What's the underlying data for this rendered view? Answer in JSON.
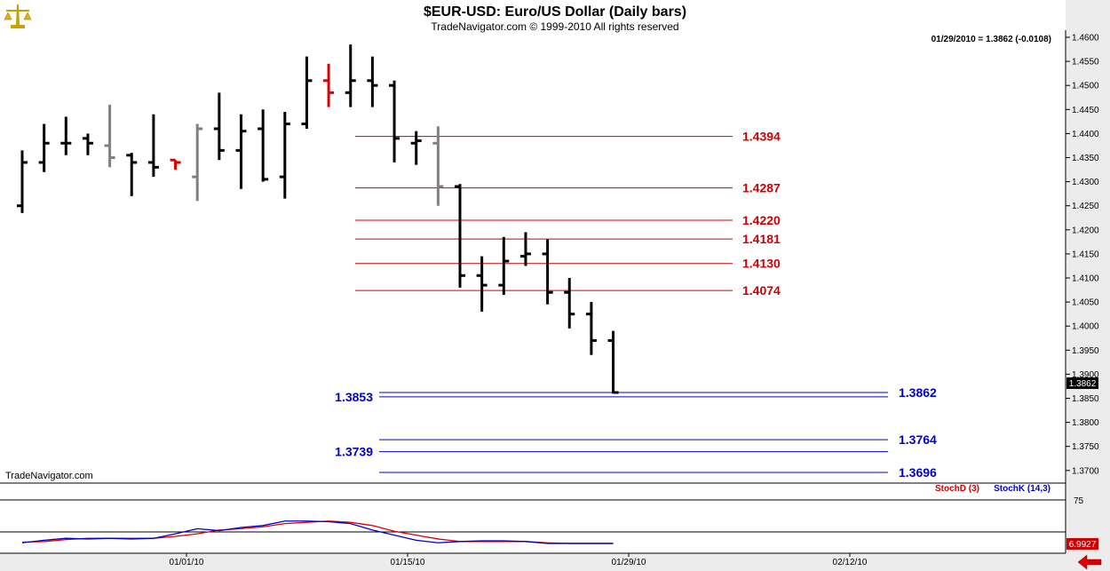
{
  "header": {
    "title": "$EUR-USD:  Euro/US Dollar  (Daily bars)",
    "subtitle": "TradeNavigator.com © 1999-2010 All rights reserved"
  },
  "info": {
    "last_quote": "01/29/2010 = 1.3862 (-0.0108)"
  },
  "watermark": "TradeNavigator.com",
  "colors": {
    "up_bar": "#000000",
    "down_bar": "#000000",
    "gray_bar": "#808080",
    "red_bar": "#dd0000",
    "fib_red": "#cc0000",
    "fib_blue": "#0000cc",
    "stoch_d": "#dd0000",
    "stoch_k": "#0000cc",
    "price_tag_bg": "#000000",
    "stoch_tag_bg": "#cc0000"
  },
  "chart_data": {
    "type": "ohlc",
    "y_ticks": [
      "1.4600",
      "1.4550",
      "1.4500",
      "1.4450",
      "1.4400",
      "1.4350",
      "1.4300",
      "1.4250",
      "1.4200",
      "1.4150",
      "1.4100",
      "1.4050",
      "1.4000",
      "1.3950",
      "1.3900",
      "1.3850",
      "1.3800",
      "1.3750",
      "1.3700"
    ],
    "ylim": [
      1.367,
      1.461
    ],
    "x_ticks": [
      "01/01/10",
      "01/15/10",
      "01/29/10",
      "02/12/10"
    ],
    "bars": [
      {
        "o": 1.425,
        "h": 1.4365,
        "l": 1.4235,
        "c": 1.434,
        "color": "black"
      },
      {
        "o": 1.434,
        "h": 1.442,
        "l": 1.432,
        "c": 1.438,
        "color": "black"
      },
      {
        "o": 1.438,
        "h": 1.4435,
        "l": 1.4355,
        "c": 1.438,
        "color": "black"
      },
      {
        "o": 1.439,
        "h": 1.44,
        "l": 1.4355,
        "c": 1.438,
        "color": "black"
      },
      {
        "o": 1.4375,
        "h": 1.446,
        "l": 1.433,
        "c": 1.435,
        "color": "gray"
      },
      {
        "o": 1.4355,
        "h": 1.436,
        "l": 1.427,
        "c": 1.434,
        "color": "black"
      },
      {
        "o": 1.434,
        "h": 1.444,
        "l": 1.431,
        "c": 1.433,
        "color": "black"
      },
      {
        "o": 1.4345,
        "h": 1.4345,
        "l": 1.4325,
        "c": 1.434,
        "color": "red"
      },
      {
        "o": 1.431,
        "h": 1.442,
        "l": 1.426,
        "c": 1.441,
        "color": "gray"
      },
      {
        "o": 1.441,
        "h": 1.4485,
        "l": 1.4345,
        "c": 1.4365,
        "color": "black"
      },
      {
        "o": 1.4365,
        "h": 1.444,
        "l": 1.4285,
        "c": 1.4405,
        "color": "black"
      },
      {
        "o": 1.441,
        "h": 1.445,
        "l": 1.43,
        "c": 1.4305,
        "color": "black"
      },
      {
        "o": 1.431,
        "h": 1.4445,
        "l": 1.4265,
        "c": 1.442,
        "color": "black"
      },
      {
        "o": 1.442,
        "h": 1.456,
        "l": 1.441,
        "c": 1.451,
        "color": "black"
      },
      {
        "o": 1.451,
        "h": 1.4545,
        "l": 1.4455,
        "c": 1.4485,
        "color": "red"
      },
      {
        "o": 1.4485,
        "h": 1.4585,
        "l": 1.4455,
        "c": 1.451,
        "color": "black"
      },
      {
        "o": 1.451,
        "h": 1.456,
        "l": 1.4455,
        "c": 1.45,
        "color": "black"
      },
      {
        "o": 1.45,
        "h": 1.451,
        "l": 1.434,
        "c": 1.439,
        "color": "black"
      },
      {
        "o": 1.438,
        "h": 1.4405,
        "l": 1.4335,
        "c": 1.4385,
        "color": "black"
      },
      {
        "o": 1.438,
        "h": 1.4415,
        "l": 1.425,
        "c": 1.429,
        "color": "gray"
      },
      {
        "o": 1.429,
        "h": 1.4295,
        "l": 1.408,
        "c": 1.4105,
        "color": "black"
      },
      {
        "o": 1.4105,
        "h": 1.4145,
        "l": 1.403,
        "c": 1.4085,
        "color": "black"
      },
      {
        "o": 1.4085,
        "h": 1.4185,
        "l": 1.4065,
        "c": 1.4135,
        "color": "black"
      },
      {
        "o": 1.4145,
        "h": 1.4195,
        "l": 1.4125,
        "c": 1.415,
        "color": "black"
      },
      {
        "o": 1.415,
        "h": 1.418,
        "l": 1.4045,
        "c": 1.407,
        "color": "black"
      },
      {
        "o": 1.407,
        "h": 1.41,
        "l": 1.3995,
        "c": 1.4025,
        "color": "black"
      },
      {
        "o": 1.4025,
        "h": 1.405,
        "l": 1.394,
        "c": 1.397,
        "color": "black"
      },
      {
        "o": 1.397,
        "h": 1.399,
        "l": 1.386,
        "c": 1.3862,
        "color": "black"
      }
    ],
    "fib_levels_red": [
      1.4394,
      1.4287,
      1.422,
      1.4181,
      1.413,
      1.4074
    ],
    "fib_labels_red": [
      "1.4394",
      "1.4287",
      "1.4220",
      "1.4181",
      "1.4130",
      "1.4074"
    ],
    "fib_levels_blue": [
      {
        "value": 1.3862,
        "label": "1.3862",
        "side": "right"
      },
      {
        "value": 1.3853,
        "label": "1.3853",
        "side": "left"
      },
      {
        "value": 1.3764,
        "label": "1.3764",
        "side": "right"
      },
      {
        "value": 1.3739,
        "label": "1.3739",
        "side": "left"
      },
      {
        "value": 1.3696,
        "label": "1.3696",
        "side": "right"
      }
    ],
    "last_price": "1.3862",
    "stochastic": {
      "legend_d": "StochD (3)",
      "legend_k": "StochK (14,3)",
      "level_label": "75",
      "level_value": 75,
      "ylim": [
        0,
        100
      ],
      "last_value": "6.9927",
      "k": [
        8,
        12,
        15,
        14,
        15,
        14,
        15,
        22,
        30,
        27,
        32,
        35,
        42,
        42,
        41,
        38,
        28,
        20,
        12,
        8,
        10,
        11,
        11,
        10,
        7,
        7,
        7,
        7
      ],
      "d": [
        9,
        10,
        13,
        15,
        15,
        15,
        15,
        18,
        22,
        28,
        30,
        33,
        38,
        40,
        42,
        40,
        35,
        26,
        20,
        14,
        10,
        10,
        10,
        10,
        8,
        7,
        7,
        7
      ]
    }
  }
}
